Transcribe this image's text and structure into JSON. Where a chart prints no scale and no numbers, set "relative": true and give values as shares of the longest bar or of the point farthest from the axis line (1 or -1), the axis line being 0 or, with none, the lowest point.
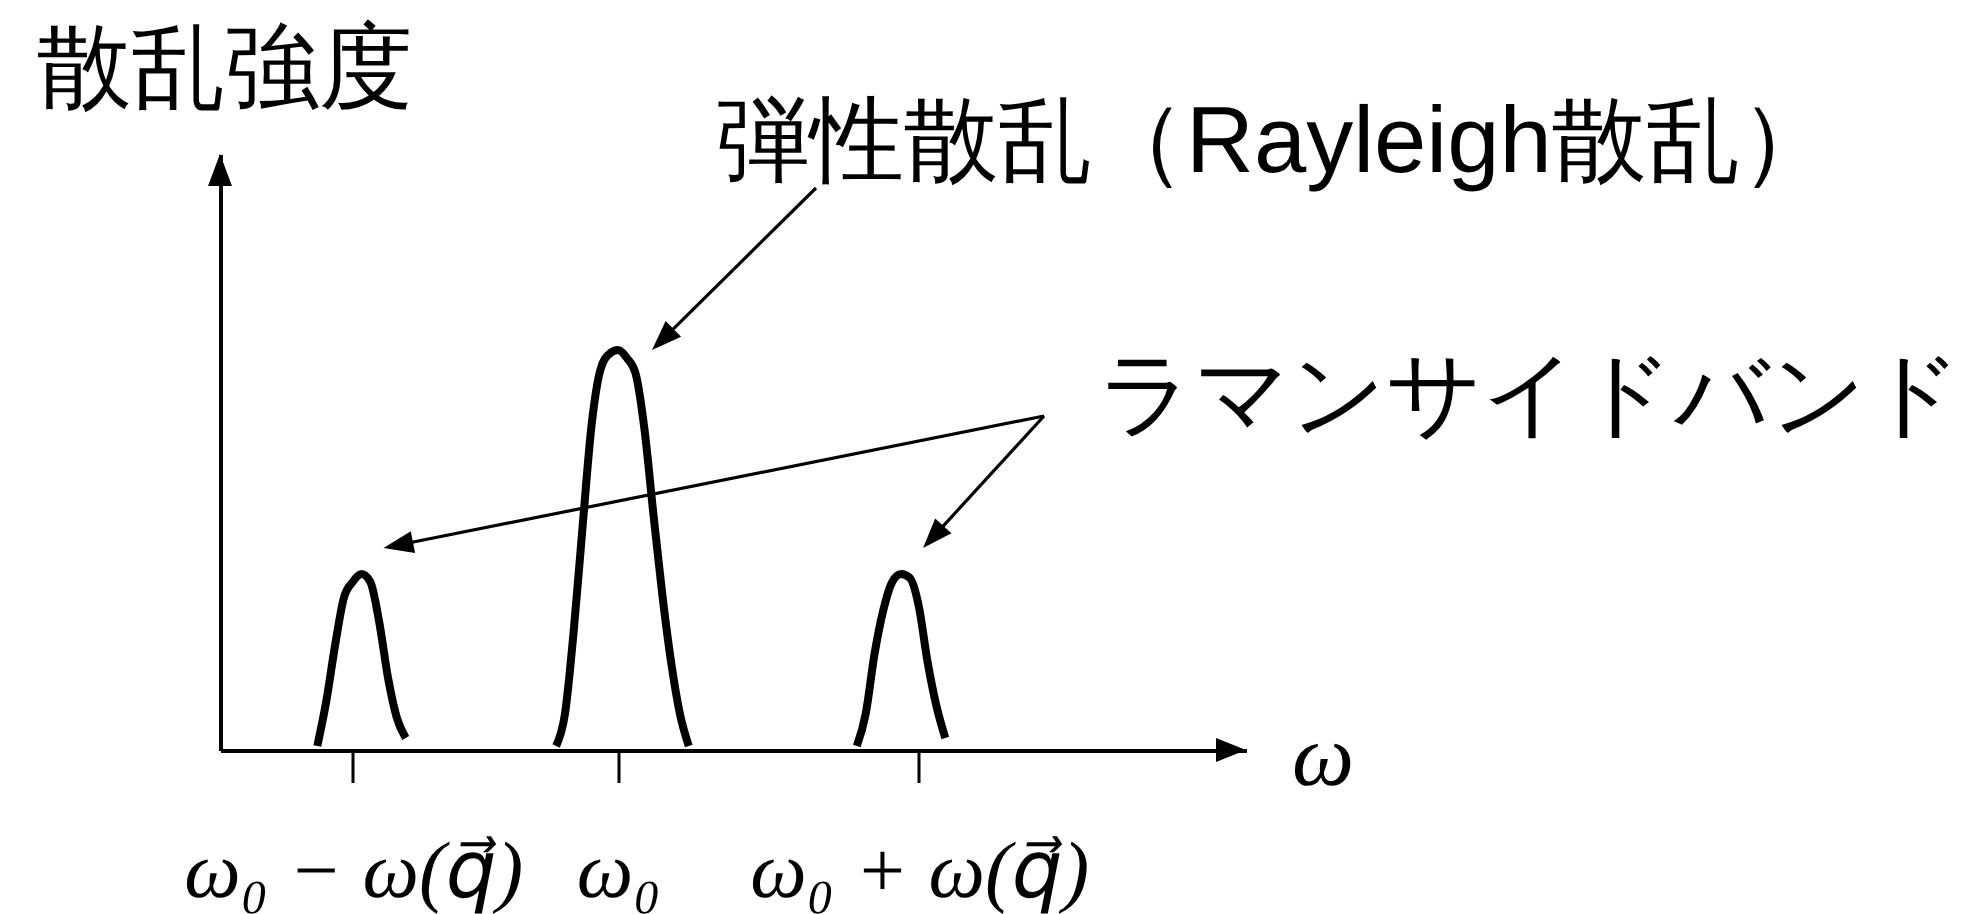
{
  "chart_data": {
    "type": "line",
    "relative": true,
    "xlabel": "ω",
    "ylabel": "散乱強度",
    "categories": [
      null,
      null,
      null,
      null,
      null,
      null,
      null,
      null,
      null,
      null,
      null,
      null,
      null,
      null,
      null,
      "ω₀ − ω(q⃗)",
      null,
      null,
      null,
      null,
      null,
      null,
      null,
      null,
      null,
      null,
      null,
      null,
      null,
      null,
      null,
      null,
      null,
      null,
      null,
      null,
      null,
      null,
      null,
      null,
      null,
      null,
      null,
      null,
      null,
      "ω₀",
      null,
      null,
      null,
      null,
      null,
      null,
      null,
      null,
      null,
      null,
      null,
      null,
      null,
      null,
      null,
      null,
      null,
      null,
      null,
      null,
      null,
      null,
      null,
      null,
      null,
      null,
      null,
      null,
      null,
      null,
      null,
      null,
      null,
      "ω₀ + ω(q⃗)",
      null,
      null,
      null,
      null,
      null,
      null,
      null,
      null,
      null,
      null,
      null,
      null,
      null,
      null,
      null,
      null,
      null,
      null,
      null,
      null,
      null,
      null,
      null,
      null,
      null,
      null,
      null,
      null,
      null,
      null,
      null,
      null,
      null,
      null,
      null,
      null,
      null
    ],
    "series": [
      {
        "color": "#000000",
        "values": [
          null,
          null,
          null,
          null,
          null,
          null,
          null,
          null,
          null,
          null,
          null,
          0.01,
          0.12,
          0.26,
          0.38,
          0.42,
          0.44,
          0.42,
          0.32,
          0.18,
          0.08,
          0.03,
          null,
          null,
          null,
          null,
          null,
          null,
          null,
          null,
          null,
          null,
          null,
          null,
          null,
          null,
          null,
          null,
          null,
          null,
          null,
          null,
          null,
          null,
          null,
          null,
          null,
          null,
          null,
          null,
          null,
          null,
          null,
          null,
          null,
          null,
          null,
          null,
          null,
          null,
          null,
          null,
          null,
          null,
          null,
          null,
          null,
          null,
          null,
          null,
          null,
          null,
          null,
          null,
          null,
          null,
          null,
          null,
          null,
          null,
          null,
          null,
          null,
          null,
          null,
          null,
          null,
          null,
          null,
          null,
          null,
          null,
          null,
          null,
          null,
          null,
          null,
          null,
          null,
          null,
          null,
          null,
          null,
          null,
          null,
          null,
          null,
          null,
          null,
          null,
          null,
          null,
          null,
          null,
          null,
          null,
          null
        ]
      },
      {
        "color": "#000000",
        "values": [
          null,
          null,
          null,
          null,
          null,
          null,
          null,
          null,
          null,
          null,
          null,
          null,
          null,
          null,
          null,
          null,
          null,
          null,
          null,
          null,
          null,
          null,
          null,
          null,
          null,
          null,
          null,
          null,
          null,
          null,
          null,
          null,
          null,
          null,
          null,
          null,
          null,
          null,
          0.01,
          0.09,
          0.3,
          0.56,
          0.81,
          0.95,
          0.99,
          1,
          0.98,
          0.94,
          0.8,
          0.59,
          0.39,
          0.22,
          0.09,
          0.01,
          null,
          null,
          null,
          null,
          null,
          null,
          null,
          null,
          null,
          null,
          null,
          null,
          null,
          null,
          null,
          null,
          null,
          null,
          null,
          null,
          null,
          null,
          null,
          null,
          null,
          null,
          null,
          null,
          null,
          null,
          null,
          null,
          null,
          null,
          null,
          null,
          null,
          null,
          null,
          null,
          null,
          null,
          null,
          null,
          null,
          null,
          null,
          null,
          null,
          null,
          null,
          null,
          null,
          null,
          null,
          null,
          null,
          null,
          null,
          null,
          null,
          null,
          null
        ]
      },
      {
        "color": "#000000",
        "values": [
          null,
          null,
          null,
          null,
          null,
          null,
          null,
          null,
          null,
          null,
          null,
          null,
          null,
          null,
          null,
          null,
          null,
          null,
          null,
          null,
          null,
          null,
          null,
          null,
          null,
          null,
          null,
          null,
          null,
          null,
          null,
          null,
          null,
          null,
          null,
          null,
          null,
          null,
          null,
          null,
          null,
          null,
          null,
          null,
          null,
          null,
          null,
          null,
          null,
          null,
          null,
          null,
          null,
          null,
          null,
          null,
          null,
          null,
          null,
          null,
          null,
          null,
          null,
          null,
          null,
          null,
          null,
          null,
          null,
          null,
          null,
          null,
          0.01,
          0.09,
          0.24,
          0.35,
          0.42,
          0.44,
          0.43,
          0.36,
          0.22,
          0.11,
          0.03,
          null,
          null,
          null,
          null,
          null,
          null,
          null,
          null,
          null,
          null,
          null,
          null,
          null,
          null,
          null,
          null,
          null,
          null,
          null,
          null,
          null,
          null,
          null,
          null,
          null,
          null,
          null,
          null,
          null,
          null,
          null,
          null,
          null,
          null
        ]
      }
    ],
    "annotations": [
      {
        "text": "弾性散乱（Rayleigh散乱）",
        "x": "ω₀",
        "y": 1
      },
      "ラマンサイドバンド"
    ]
  }
}
